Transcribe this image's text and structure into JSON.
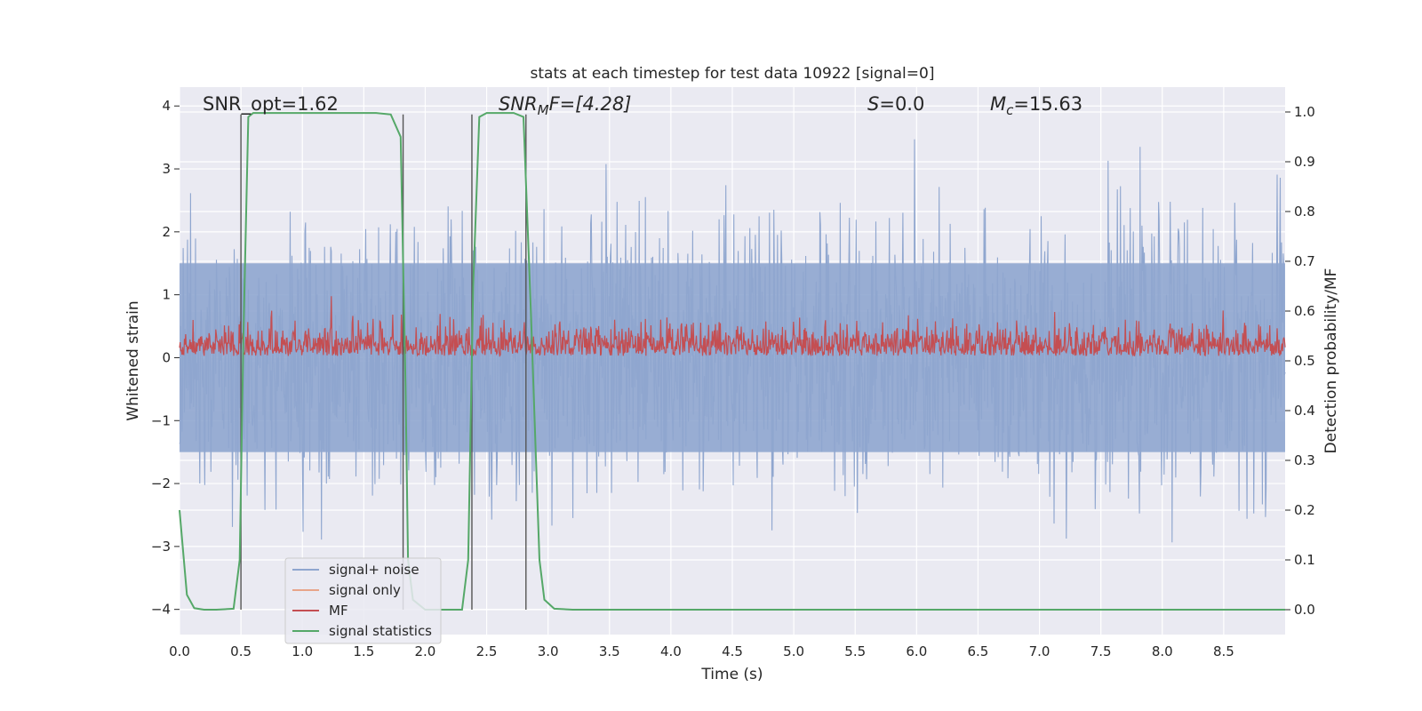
{
  "chart_data": {
    "type": "line",
    "title": "stats at each timestep for test data 10922 [signal=0]",
    "xlabel": "Time (s)",
    "ylabel_left": "Whitened strain",
    "ylabel_right": "Detection probability/MF",
    "xlim": [
      0.0,
      9.0
    ],
    "ylim_left": [
      -4.4,
      4.3
    ],
    "ylim_right": [
      -0.05,
      1.05
    ],
    "xticks": [
      "0.0",
      "0.5",
      "1.0",
      "1.5",
      "2.0",
      "2.5",
      "3.0",
      "3.5",
      "4.0",
      "4.5",
      "5.0",
      "5.5",
      "6.0",
      "6.5",
      "7.0",
      "7.5",
      "8.0",
      "8.5"
    ],
    "xtick_values": [
      0.0,
      0.5,
      1.0,
      1.5,
      2.0,
      2.5,
      3.0,
      3.5,
      4.0,
      4.5,
      5.0,
      5.5,
      6.0,
      6.5,
      7.0,
      7.5,
      8.0,
      8.5
    ],
    "yticks_left": [
      "4",
      "3",
      "2",
      "1",
      "0",
      "−1",
      "−2",
      "−3",
      "−4"
    ],
    "ytick_values_left": [
      4,
      3,
      2,
      1,
      0,
      -1,
      -2,
      -3,
      -4
    ],
    "yticks_right": [
      "1.0",
      "0.9",
      "0.8",
      "0.7",
      "0.6",
      "0.5",
      "0.4",
      "0.3",
      "0.2",
      "0.1",
      "0.0"
    ],
    "ytick_values_right": [
      1.0,
      0.9,
      0.8,
      0.7,
      0.6,
      0.5,
      0.4,
      0.3,
      0.2,
      0.1,
      0.0
    ],
    "annotations": {
      "snr_opt": "SNR_opt=1.62",
      "snr_mf_main": "SNR",
      "snr_mf_sub": "M",
      "snr_mf_rest": "F=[4.28]",
      "s_var": "S",
      "s_rest": "=0.0",
      "mc_var": "M",
      "mc_sub": "c",
      "mc_rest": "=15.63"
    },
    "legend": {
      "position": "lower-left",
      "entries": [
        {
          "label": "signal+ noise",
          "color": "#8fa6cf"
        },
        {
          "label": "signal only",
          "color": "#e8a58a"
        },
        {
          "label": "MF",
          "color": "#c44e52"
        },
        {
          "label": "signal statistics",
          "color": "#55a868"
        }
      ]
    },
    "vertical_markers": [
      0.5,
      1.82,
      2.38,
      2.82
    ],
    "series": [
      {
        "name": "signal statistics",
        "axis": "right",
        "color": "#55a868",
        "x": [
          0.0,
          0.06,
          0.12,
          0.2,
          0.3,
          0.44,
          0.49,
          0.52,
          0.56,
          0.6,
          0.8,
          1.2,
          1.6,
          1.72,
          1.8,
          1.84,
          1.86,
          1.9,
          2.0,
          2.15,
          2.3,
          2.35,
          2.39,
          2.44,
          2.5,
          2.6,
          2.72,
          2.8,
          2.86,
          2.93,
          2.97,
          3.05,
          3.2,
          4.0,
          5.0,
          6.0,
          7.0,
          8.0,
          9.0
        ],
        "y": [
          0.2,
          0.03,
          0.003,
          0.0,
          0.0,
          0.002,
          0.1,
          0.55,
          0.99,
          0.998,
          0.998,
          0.998,
          0.998,
          0.995,
          0.95,
          0.45,
          0.1,
          0.02,
          0.0,
          0.0,
          0.0,
          0.1,
          0.65,
          0.99,
          0.998,
          0.998,
          0.998,
          0.99,
          0.6,
          0.1,
          0.02,
          0.002,
          0.0,
          0.0,
          0.0,
          0.0,
          0.0,
          0.0,
          0.0
        ]
      },
      {
        "name": "signal+ noise",
        "axis": "left",
        "color": "#8fa6cf",
        "description_values": {
          "typical_abs": 1.5,
          "envelope_max": 3.7,
          "envelope_min": -4.0,
          "samples_rendered": 1800
        }
      },
      {
        "name": "MF",
        "axis": "right",
        "color": "#c44e52",
        "description_values": {
          "baseline": 0.51,
          "typical_max": 0.6,
          "spike_max": 0.63,
          "samples_rendered": 1800
        }
      }
    ]
  }
}
